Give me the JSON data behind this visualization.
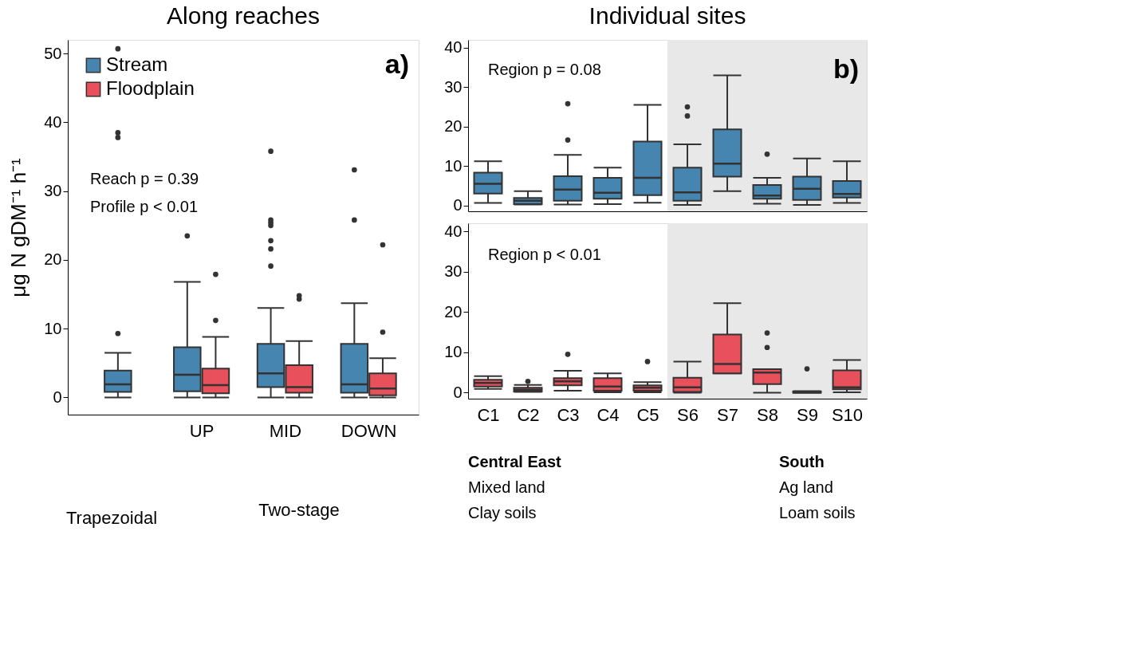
{
  "chart_data": [
    {
      "type": "box",
      "title": "Along reaches",
      "ylabel": "μg N gDM⁻¹ h⁻¹",
      "categories": [
        null,
        "UP",
        "MID",
        "DOWN"
      ],
      "ylim": [
        -2.5,
        52
      ],
      "yticks": [
        0,
        10,
        20,
        30,
        40,
        50
      ],
      "grid": false,
      "legend": "top left",
      "annotations": [
        "a)",
        "Reach p = 0.39",
        "Profile p < 0.01",
        "Trapezoidal",
        "Two-stage"
      ],
      "series": [
        {
          "name": "Stream",
          "color": "#4585b0",
          "boxes": [
            {
              "low": 0,
              "q1": 0.8,
              "median": 1.9,
              "q3": 3.9,
              "high": 6.5,
              "outliers": [
                9.3,
                37.8,
                38.5,
                50.7
              ]
            },
            {
              "low": 0,
              "q1": 0.9,
              "median": 3.3,
              "q3": 7.3,
              "high": 16.8,
              "outliers": [
                23.5
              ]
            },
            {
              "low": 0,
              "q1": 1.5,
              "median": 3.5,
              "q3": 7.8,
              "high": 13.0,
              "outliers": [
                19.1,
                21.6,
                22.8,
                25.0,
                25.4,
                25.8,
                35.8
              ]
            },
            {
              "low": 0,
              "q1": 0.7,
              "median": 1.9,
              "q3": 7.8,
              "high": 13.7,
              "outliers": [
                25.8,
                33.1
              ]
            }
          ]
        },
        {
          "name": "Floodplain",
          "color": "#e8505b",
          "boxes": [
            null,
            {
              "low": 0,
              "q1": 0.6,
              "median": 1.8,
              "q3": 4.2,
              "high": 8.8,
              "outliers": [
                11.2,
                17.9
              ]
            },
            {
              "low": 0,
              "q1": 0.7,
              "median": 1.5,
              "q3": 4.7,
              "high": 8.2,
              "outliers": [
                14.3,
                14.8
              ]
            },
            {
              "low": 0,
              "q1": 0.3,
              "median": 1.3,
              "q3": 3.5,
              "high": 5.7,
              "outliers": [
                9.5,
                22.2
              ]
            }
          ]
        }
      ]
    },
    {
      "type": "box",
      "title": "Individual sites",
      "categories": [
        "C1",
        "C2",
        "C3",
        "C4",
        "C5",
        "S6",
        "S7",
        "S8",
        "S9",
        "S10"
      ],
      "ylim": [
        -1.5,
        42
      ],
      "yticks": [
        0,
        10,
        20,
        30,
        40
      ],
      "grid": false,
      "tick_labels": "y",
      "annotations": [
        "b)",
        "Region p = 0.08"
      ],
      "bands": [
        {
          "axis": "x",
          "from": "S6",
          "to": "S10",
          "color": "#e8e8e8"
        }
      ],
      "series": [
        {
          "color": "#4585b0",
          "boxes": [
            {
              "low": 0.6,
              "q1": 3.0,
              "median": 5.5,
              "q3": 8.3,
              "high": 11.2
            },
            {
              "low": 0.2,
              "q1": 0.3,
              "median": 1.2,
              "q3": 1.9,
              "high": 3.6
            },
            {
              "low": 0.2,
              "q1": 1.2,
              "median": 4.0,
              "q3": 7.4,
              "high": 12.8,
              "outliers": [
                16.6,
                25.8
              ]
            },
            {
              "low": 0.3,
              "q1": 1.7,
              "median": 3.2,
              "q3": 7.0,
              "high": 9.6
            },
            {
              "low": 0.7,
              "q1": 2.6,
              "median": 7.0,
              "q3": 16.2,
              "high": 25.5
            },
            {
              "low": 0.1,
              "q1": 1.2,
              "median": 3.3,
              "q3": 9.6,
              "high": 15.5,
              "outliers": [
                22.7,
                25.0
              ]
            },
            {
              "low": 3.6,
              "q1": 7.3,
              "median": 10.6,
              "q3": 19.3,
              "high": 33.0
            },
            {
              "low": 0.4,
              "q1": 1.7,
              "median": 2.5,
              "q3": 5.2,
              "high": 7.0,
              "outliers": [
                13.0
              ]
            },
            {
              "low": 0.1,
              "q1": 1.4,
              "median": 4.2,
              "q3": 7.3,
              "high": 11.9
            },
            {
              "low": 0.6,
              "q1": 2.0,
              "median": 2.9,
              "q3": 6.2,
              "high": 11.2
            }
          ]
        }
      ]
    },
    {
      "type": "box",
      "categories": [
        "C1",
        "C2",
        "C3",
        "C4",
        "C5",
        "S6",
        "S7",
        "S8",
        "S9",
        "S10"
      ],
      "ylim": [
        -1.5,
        42
      ],
      "yticks": [
        0,
        10,
        20,
        30,
        40
      ],
      "grid": false,
      "annotations": [
        "Region p < 0.01",
        "Central East",
        "Mixed land",
        "Clay soils",
        "South",
        "Ag land",
        "Loam soils"
      ],
      "bands": [
        {
          "axis": "x",
          "from": "S6",
          "to": "S10",
          "color": "#e8e8e8"
        }
      ],
      "series": [
        {
          "color": "#e8505b",
          "boxes": [
            {
              "low": 0.9,
              "q1": 1.5,
              "median": 2.4,
              "q3": 3.2,
              "high": 4.1
            },
            {
              "low": 0.2,
              "q1": 0.3,
              "median": 0.7,
              "q3": 1.2,
              "high": 1.9,
              "outliers": [
                2.8
              ]
            },
            {
              "low": 0.5,
              "q1": 1.8,
              "median": 2.8,
              "q3": 3.6,
              "high": 5.4,
              "outliers": [
                9.5
              ]
            },
            {
              "low": 0.1,
              "q1": 0.5,
              "median": 1.5,
              "q3": 3.6,
              "high": 4.8
            },
            {
              "low": 0.1,
              "q1": 0.5,
              "median": 1.2,
              "q3": 1.8,
              "high": 2.6,
              "outliers": [
                7.7
              ]
            },
            {
              "low": 0,
              "q1": 0.2,
              "median": 1.3,
              "q3": 3.7,
              "high": 7.7
            },
            {
              "low": 4.8,
              "q1": 4.8,
              "median": 7.1,
              "q3": 14.4,
              "high": 22.2
            },
            {
              "low": 0,
              "q1": 2.1,
              "median": 5.0,
              "q3": 5.8,
              "high": 5.8,
              "outliers": [
                11.2,
                14.8
              ]
            },
            {
              "low": 0,
              "q1": 0,
              "median": 0.1,
              "q3": 0.3,
              "high": 0.4,
              "outliers": [
                5.9
              ]
            },
            {
              "low": 0.1,
              "q1": 0.8,
              "median": 1.3,
              "q3": 5.5,
              "high": 8.1
            }
          ]
        }
      ]
    }
  ]
}
